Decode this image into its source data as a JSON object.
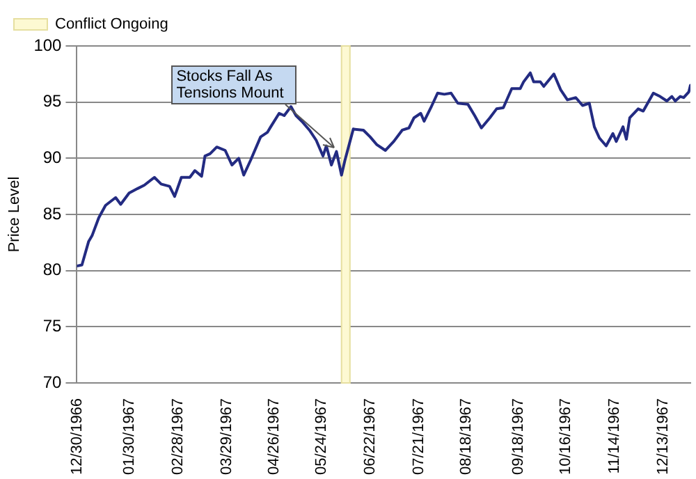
{
  "chart_data": {
    "type": "line",
    "ylabel": "Price Level",
    "xlim": [
      "1966-12-30",
      "1967-12-29"
    ],
    "ylim": [
      70,
      100
    ],
    "yticks": [
      70,
      75,
      80,
      85,
      90,
      95,
      100
    ],
    "xticks": [
      {
        "value": "1966-12-30",
        "label": "12/30/1966"
      },
      {
        "value": "1967-01-30",
        "label": "01/30/1967"
      },
      {
        "value": "1967-02-28",
        "label": "02/28/1967"
      },
      {
        "value": "1967-03-29",
        "label": "03/29/1967"
      },
      {
        "value": "1967-04-26",
        "label": "04/26/1967"
      },
      {
        "value": "1967-05-24",
        "label": "05/24/1967"
      },
      {
        "value": "1967-06-22",
        "label": "06/22/1967"
      },
      {
        "value": "1967-07-21",
        "label": "07/21/1967"
      },
      {
        "value": "1967-08-18",
        "label": "08/18/1967"
      },
      {
        "value": "1967-09-18",
        "label": "09/18/1967"
      },
      {
        "value": "1967-10-16",
        "label": "10/16/1967"
      },
      {
        "value": "1967-11-14",
        "label": "11/14/1967"
      },
      {
        "value": "1967-12-13",
        "label": "12/13/1967"
      }
    ],
    "grid": "y",
    "legend": "top left",
    "marker": "none",
    "line_style": "solid",
    "bands": [
      {
        "axis": "x",
        "from": "1967-06-05",
        "to": "1967-06-10",
        "label": "Conflict Ongoing",
        "color": "#fdf9d2"
      }
    ],
    "annotations": [
      {
        "text": "Stocks Fall As Tensions Mount",
        "x": "1967-06-02",
        "y": 90.6
      }
    ],
    "x": [
      "1966-12-30",
      "1967-01-02",
      "1967-01-06",
      "1967-01-08",
      "1967-01-12",
      "1967-01-16",
      "1967-01-22",
      "1967-01-25",
      "1967-01-30",
      "1967-02-04",
      "1967-02-08",
      "1967-02-14",
      "1967-02-18",
      "1967-02-23",
      "1967-02-26",
      "1967-03-02",
      "1967-03-07",
      "1967-03-10",
      "1967-03-14",
      "1967-03-16",
      "1967-03-19",
      "1967-03-23",
      "1967-03-28",
      "1967-04-01",
      "1967-04-05",
      "1967-04-08",
      "1967-04-12",
      "1967-04-18",
      "1967-04-22",
      "1967-04-24",
      "1967-04-29",
      "1967-05-02",
      "1967-05-06",
      "1967-05-09",
      "1967-05-13",
      "1967-05-17",
      "1967-05-21",
      "1967-05-25",
      "1967-05-27",
      "1967-05-30",
      "1967-06-02",
      "1967-06-05",
      "1967-06-07",
      "1967-06-12",
      "1967-06-18",
      "1967-06-22",
      "1967-06-26",
      "1967-07-01",
      "1967-07-06",
      "1967-07-11",
      "1967-07-15",
      "1967-07-18",
      "1967-07-22",
      "1967-07-24",
      "1967-07-28",
      "1967-08-01",
      "1967-08-05",
      "1967-08-09",
      "1967-08-13",
      "1967-08-19",
      "1967-08-23",
      "1967-08-27",
      "1967-09-01",
      "1967-09-05",
      "1967-09-09",
      "1967-09-14",
      "1967-09-19",
      "1967-09-21",
      "1967-09-25",
      "1967-09-27",
      "1967-10-01",
      "1967-10-03",
      "1967-10-09",
      "1967-10-13",
      "1967-10-17",
      "1967-10-22",
      "1967-10-26",
      "1967-10-30",
      "1967-11-02",
      "1967-11-05",
      "1967-11-09",
      "1967-11-13",
      "1967-11-15",
      "1967-11-19",
      "1967-11-21",
      "1967-11-23",
      "1967-11-28",
      "1967-12-01",
      "1967-12-07",
      "1967-12-11",
      "1967-12-15",
      "1967-12-18",
      "1967-12-20",
      "1967-12-23",
      "1967-12-25",
      "1967-12-28",
      "1967-12-29"
    ],
    "series": [
      {
        "color": "#232b82",
        "values": [
          80.4,
          80.5,
          82.6,
          83.1,
          84.7,
          85.8,
          86.5,
          85.9,
          86.9,
          87.3,
          87.6,
          88.3,
          87.7,
          87.5,
          86.6,
          88.3,
          88.3,
          88.9,
          88.4,
          90.2,
          90.4,
          91.0,
          90.7,
          89.4,
          90.0,
          88.5,
          89.8,
          91.9,
          92.3,
          92.8,
          94.0,
          93.8,
          94.6,
          93.8,
          93.2,
          92.5,
          91.6,
          90.2,
          91.1,
          89.4,
          90.6,
          88.5,
          89.8,
          92.6,
          92.5,
          91.9,
          91.2,
          90.7,
          91.5,
          92.5,
          92.7,
          93.6,
          94.0,
          93.3,
          94.5,
          95.8,
          95.7,
          95.8,
          94.9,
          94.8,
          93.8,
          92.7,
          93.6,
          94.4,
          94.5,
          96.2,
          96.2,
          96.8,
          97.6,
          96.8,
          96.8,
          96.4,
          97.5,
          96.1,
          95.2,
          95.4,
          94.7,
          94.9,
          92.8,
          91.8,
          91.1,
          92.2,
          91.5,
          92.8,
          91.7,
          93.6,
          94.4,
          94.2,
          95.8,
          95.5,
          95.1,
          95.5,
          95.1,
          95.5,
          95.4,
          95.9,
          96.5
        ]
      }
    ]
  }
}
